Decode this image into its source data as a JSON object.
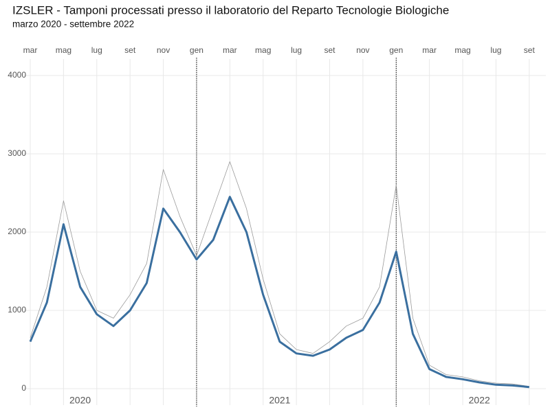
{
  "chart_data": {
    "type": "line",
    "title": "IZSLER - Tamponi processati presso il laboratorio del Reparto Tecnologie Biologiche",
    "subtitle": "marzo 2020 - settembre 2022",
    "x": [
      "2020-03",
      "2020-04",
      "2020-05",
      "2020-06",
      "2020-07",
      "2020-08",
      "2020-09",
      "2020-10",
      "2020-11",
      "2020-12",
      "2021-01",
      "2021-02",
      "2021-03",
      "2021-04",
      "2021-05",
      "2021-06",
      "2021-07",
      "2021-08",
      "2021-09",
      "2021-10",
      "2021-11",
      "2021-12",
      "2022-01",
      "2022-02",
      "2022-03",
      "2022-04",
      "2022-05",
      "2022-06",
      "2022-07",
      "2022-08",
      "2022-09"
    ],
    "series": [
      {
        "color": "#9a9a9a",
        "values": [
          650,
          1300,
          2400,
          1500,
          1000,
          900,
          1200,
          1600,
          2800,
          2200,
          1700,
          2300,
          2900,
          2300,
          1400,
          700,
          500,
          450,
          600,
          800,
          900,
          1300,
          2600,
          900,
          300,
          180,
          150,
          100,
          70,
          60,
          30
        ]
      },
      {
        "color": "#3a6f9f",
        "values": [
          600,
          1100,
          2100,
          1300,
          950,
          800,
          1000,
          1350,
          2300,
          2000,
          1650,
          1900,
          2450,
          2000,
          1200,
          600,
          450,
          420,
          500,
          650,
          750,
          1100,
          1750,
          700,
          250,
          150,
          120,
          80,
          50,
          40,
          20
        ]
      }
    ],
    "xlim": [
      "2020-03",
      "2022-10"
    ],
    "xticks": [
      {
        "value": "2020-03",
        "label": "mar"
      },
      {
        "value": "2020-05",
        "label": "mag"
      },
      {
        "value": "2020-07",
        "label": "lug"
      },
      {
        "value": "2020-09",
        "label": "set"
      },
      {
        "value": "2020-11",
        "label": "nov"
      },
      {
        "value": "2021-01",
        "label": "gen"
      },
      {
        "value": "2021-03",
        "label": "mar"
      },
      {
        "value": "2021-05",
        "label": "mag"
      },
      {
        "value": "2021-07",
        "label": "lug"
      },
      {
        "value": "2021-09",
        "label": "set"
      },
      {
        "value": "2021-11",
        "label": "nov"
      },
      {
        "value": "2022-01",
        "label": "gen"
      },
      {
        "value": "2022-03",
        "label": "mar"
      },
      {
        "value": "2022-05",
        "label": "mag"
      },
      {
        "value": "2022-07",
        "label": "lug"
      },
      {
        "value": "2022-09",
        "label": "set"
      }
    ],
    "year_labels": [
      {
        "value": "2020-06",
        "label": "2020"
      },
      {
        "value": "2021-06",
        "label": "2021"
      },
      {
        "value": "2022-06",
        "label": "2022"
      }
    ],
    "vlines": [
      "2021-01",
      "2022-01"
    ],
    "ylim": [
      0,
      4000
    ],
    "yticks": [
      0,
      1000,
      2000,
      3000,
      4000
    ],
    "grid": true
  }
}
